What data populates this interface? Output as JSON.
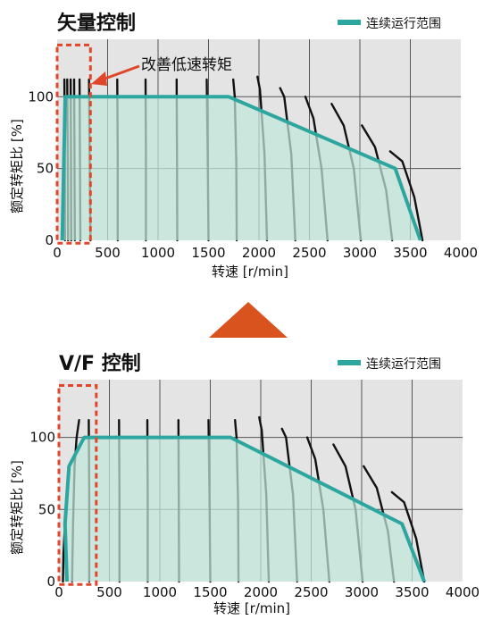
{
  "colors": {
    "plot_bg": "#e4e4e4",
    "grid": "#555555",
    "range_fill": "#bfe6da",
    "range_line": "#2ea6a0",
    "curve": "#111111",
    "highlight": "#e0462a",
    "triangle": "#d9531e"
  },
  "chart_data": [
    {
      "type": "area",
      "title": "矢量控制",
      "xlabel": "转速 [r/min]",
      "ylabel": "额定转矩比 [%]",
      "xlim": [
        0,
        4000
      ],
      "ylim": [
        0,
        140
      ],
      "xticks": [
        "0",
        "500",
        "1000",
        "1500",
        "2000",
        "2500",
        "3000",
        "3500",
        "4000"
      ],
      "yticks": [
        "0",
        "50",
        "100"
      ],
      "grid": true,
      "legend": "top-right",
      "series": [
        {
          "name": "连续运行范围",
          "x": [
            50,
            80,
            120,
            1700,
            3350,
            3600
          ],
          "y": [
            0,
            100,
            100,
            100,
            50,
            0
          ]
        }
      ],
      "annotation": "改善低速转矩",
      "highlight_xrange": [
        0,
        330
      ]
    },
    {
      "type": "area",
      "title": "V/F 控制",
      "xlabel": "转速 [r/min]",
      "ylabel": "额定转矩比 [%]",
      "xlim": [
        0,
        4000
      ],
      "ylim": [
        0,
        140
      ],
      "xticks": [
        "0",
        "500",
        "1000",
        "1500",
        "2000",
        "2500",
        "3000",
        "3500",
        "4000"
      ],
      "yticks": [
        "0",
        "50",
        "100"
      ],
      "grid": true,
      "legend": "top-right",
      "series": [
        {
          "name": "连续运行范围",
          "x": [
            80,
            60,
            100,
            250,
            1700,
            3400,
            3620
          ],
          "y": [
            0,
            40,
            80,
            100,
            100,
            40,
            0
          ]
        }
      ],
      "highlight_xrange": [
        0,
        370
      ]
    }
  ]
}
